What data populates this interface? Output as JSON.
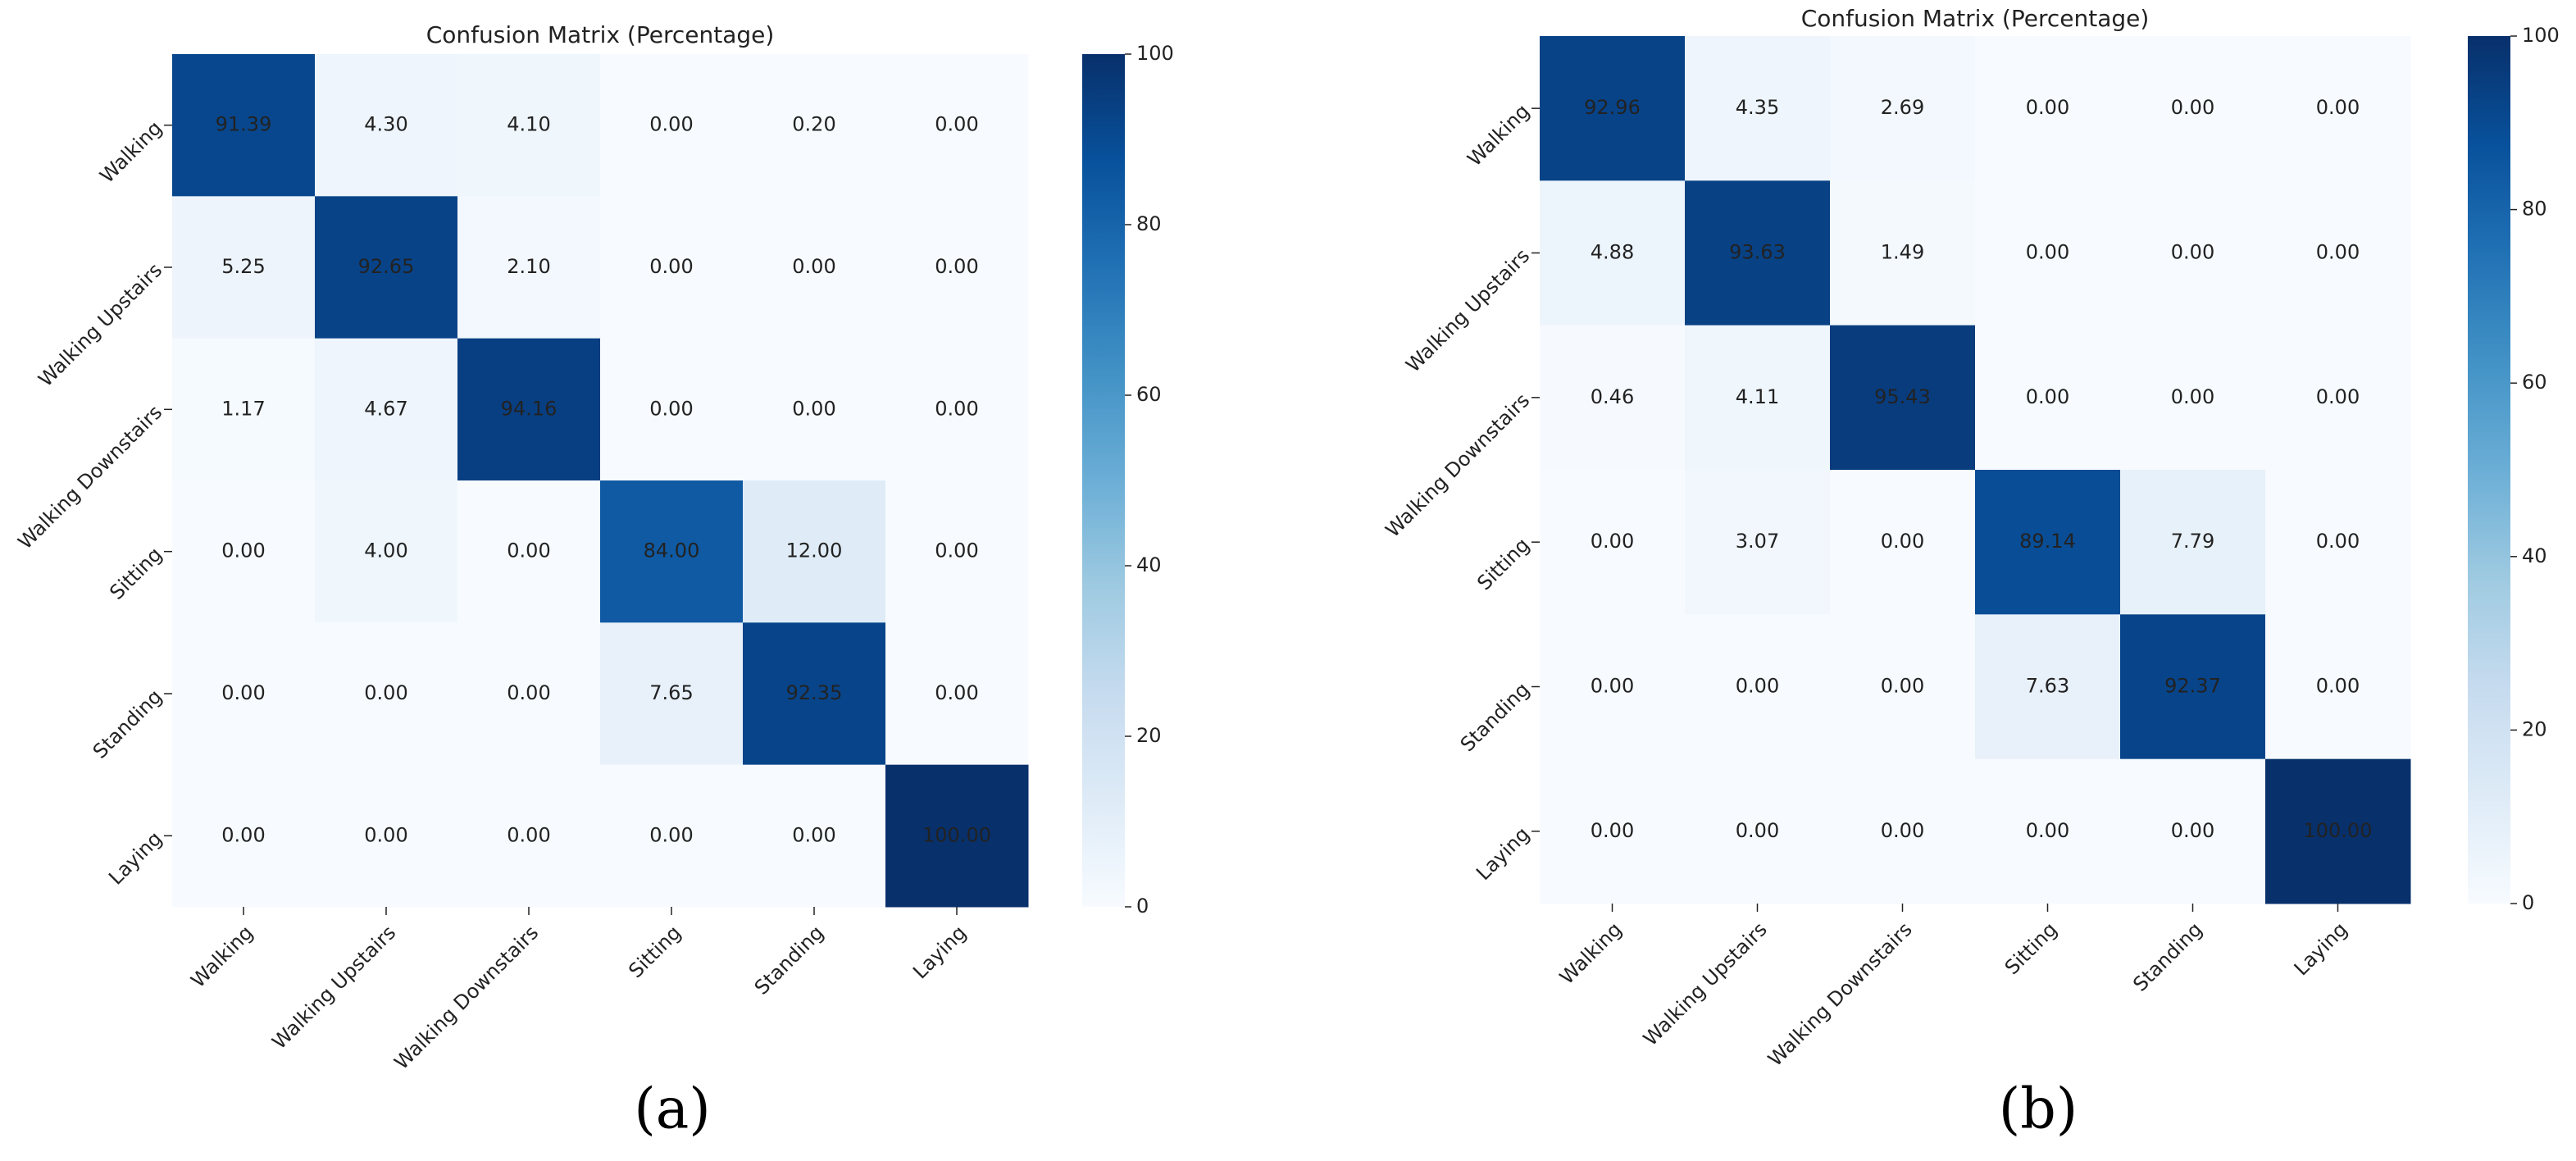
{
  "chart_data": [
    {
      "type": "heatmap",
      "title": "Confusion Matrix (Percentage)",
      "caption": "(a)",
      "categories": [
        "Walking",
        "Walking Upstairs",
        "Walking Downstairs",
        "Sitting",
        "Standing",
        "Laying"
      ],
      "y_categories": [
        "Walking",
        "Walking Upstairs",
        "Walking Downstairs",
        "Sitting",
        "Standing",
        "Laying"
      ],
      "values": [
        [
          91.39,
          4.3,
          4.1,
          0,
          0.2,
          0
        ],
        [
          5.25,
          92.65,
          2.1,
          0,
          0,
          0
        ],
        [
          1.17,
          4.67,
          94.16,
          0,
          0,
          0
        ],
        [
          0,
          4,
          0,
          84,
          12,
          0
        ],
        [
          0,
          0,
          0,
          7.65,
          92.35,
          0
        ],
        [
          0,
          0,
          0,
          0,
          0,
          100
        ]
      ],
      "value_labels": [
        [
          "91.39",
          "4.30",
          "4.10",
          "0.00",
          "0.20",
          "0.00"
        ],
        [
          "5.25",
          "92.65",
          "2.10",
          "0.00",
          "0.00",
          "0.00"
        ],
        [
          "1.17",
          "4.67",
          "94.16",
          "0.00",
          "0.00",
          "0.00"
        ],
        [
          "0.00",
          "4.00",
          "0.00",
          "84.00",
          "12.00",
          "0.00"
        ],
        [
          "0.00",
          "0.00",
          "0.00",
          "7.65",
          "92.35",
          "0.00"
        ],
        [
          "0.00",
          "0.00",
          "0.00",
          "0.00",
          "0.00",
          "100.00"
        ]
      ],
      "clim": [
        0,
        100
      ],
      "cticks": [
        0,
        20,
        40,
        60,
        80,
        100
      ],
      "colormap": [
        "#f7fbff",
        "#deebf7",
        "#c6dbef",
        "#9ecae1",
        "#6baed6",
        "#4292c6",
        "#2171b5",
        "#08519c",
        "#08306b"
      ]
    },
    {
      "type": "heatmap",
      "title": "Confusion Matrix (Percentage)",
      "caption": "(b)",
      "categories": [
        "Walking",
        "Walking Upstairs",
        "Walking Downstairs",
        "Sitting",
        "Standing",
        "Laying"
      ],
      "y_categories": [
        "Walking",
        "Walking Upstairs",
        "Walking Downstairs",
        "Sitting",
        "Standing",
        "Laying"
      ],
      "values": [
        [
          92.96,
          4.35,
          2.69,
          0,
          0,
          0
        ],
        [
          4.88,
          93.63,
          1.49,
          0,
          0,
          0
        ],
        [
          0.46,
          4.11,
          95.43,
          0,
          0,
          0
        ],
        [
          0,
          3.07,
          0,
          89.14,
          7.79,
          0
        ],
        [
          0,
          0,
          0,
          7.63,
          92.37,
          0
        ],
        [
          0,
          0,
          0,
          0,
          0,
          100
        ]
      ],
      "value_labels": [
        [
          "92.96",
          "4.35",
          "2.69",
          "0.00",
          "0.00",
          "0.00"
        ],
        [
          "4.88",
          "93.63",
          "1.49",
          "0.00",
          "0.00",
          "0.00"
        ],
        [
          "0.46",
          "4.11",
          "95.43",
          "0.00",
          "0.00",
          "0.00"
        ],
        [
          "0.00",
          "3.07",
          "0.00",
          "89.14",
          "7.79",
          "0.00"
        ],
        [
          "0.00",
          "0.00",
          "0.00",
          "7.63",
          "92.37",
          "0.00"
        ],
        [
          "0.00",
          "0.00",
          "0.00",
          "0.00",
          "0.00",
          "100.00"
        ]
      ],
      "clim": [
        0,
        100
      ],
      "cticks": [
        0,
        20,
        40,
        60,
        80,
        100
      ],
      "colormap": [
        "#f7fbff",
        "#deebf7",
        "#c6dbef",
        "#9ecae1",
        "#6baed6",
        "#4292c6",
        "#2171b5",
        "#08519c",
        "#08306b"
      ]
    }
  ]
}
